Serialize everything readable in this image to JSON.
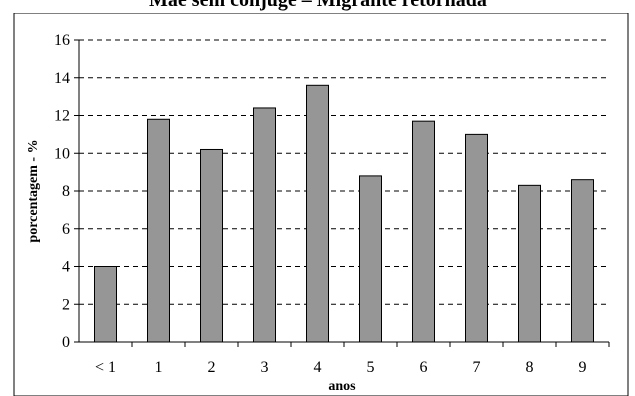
{
  "chart_data": {
    "type": "bar",
    "title": "Mãe sem cônjuge – Migrante retornada",
    "xlabel": "anos",
    "ylabel": "porcentagem - %",
    "categories": [
      "< 1",
      "1",
      "2",
      "3",
      "4",
      "5",
      "6",
      "7",
      "8",
      "9"
    ],
    "values": [
      4.0,
      11.8,
      10.2,
      12.4,
      13.6,
      8.8,
      11.7,
      11.0,
      8.3,
      8.6
    ],
    "ylim": [
      0,
      16
    ],
    "yticks": [
      "0",
      "2",
      "4",
      "6",
      "8",
      "10",
      "12",
      "14",
      "16"
    ],
    "grid": true,
    "legend": "none",
    "bar_color": "#969696",
    "bar_border_color": "#000000"
  }
}
